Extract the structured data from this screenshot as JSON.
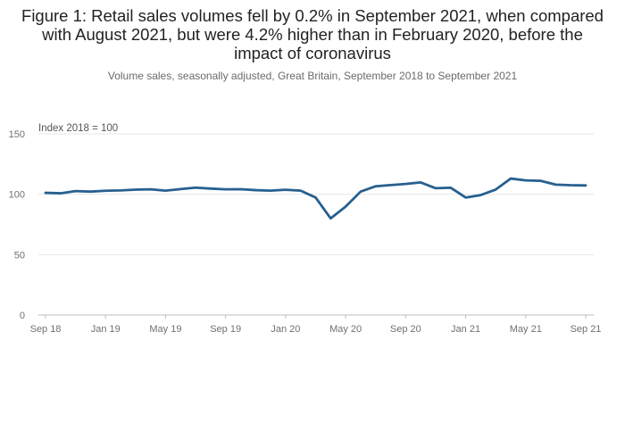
{
  "chart_data": {
    "type": "line",
    "title": "Figure 1: Retail sales volumes fell by 0.2% in September 2021, when compared with August 2021, but were 4.2% higher than in February 2020, before the impact of coronavirus",
    "subtitle": "Volume sales, seasonally adjusted, Great Britain, September 2018 to September 2021",
    "ylabel": "Index 2018 = 100",
    "xlabel": "",
    "ylim": [
      0,
      150
    ],
    "yticks": [
      0,
      50,
      100,
      150
    ],
    "xtick_labels": [
      "Sep 18",
      "Jan 19",
      "May 19",
      "Sep 19",
      "Jan 20",
      "May 20",
      "Sep 20",
      "Jan 21",
      "May 21",
      "Sep 21"
    ],
    "grid": true,
    "series": [
      {
        "name": "Volume sales",
        "color": "#27608f",
        "x": [
          "Sep 18",
          "Oct 18",
          "Nov 18",
          "Dec 18",
          "Jan 19",
          "Feb 19",
          "Mar 19",
          "Apr 19",
          "May 19",
          "Jun 19",
          "Jul 19",
          "Aug 19",
          "Sep 19",
          "Oct 19",
          "Nov 19",
          "Dec 19",
          "Jan 20",
          "Feb 20",
          "Mar 20",
          "Apr 20",
          "May 20",
          "Jun 20",
          "Jul 20",
          "Aug 20",
          "Sep 20",
          "Oct 20",
          "Nov 20",
          "Dec 20",
          "Jan 21",
          "Feb 21",
          "Mar 21",
          "Apr 21",
          "May 21",
          "Jun 21",
          "Jul 21",
          "Aug 21",
          "Sep 21"
        ],
        "values": [
          101.2,
          100.8,
          102.6,
          102.2,
          102.9,
          103.2,
          103.8,
          104.1,
          103.0,
          104.3,
          105.5,
          104.7,
          104.1,
          104.2,
          103.4,
          103.0,
          103.7,
          103.0,
          97.3,
          80.0,
          89.8,
          102.2,
          106.6,
          107.6,
          108.5,
          109.8,
          105.0,
          105.4,
          97.3,
          99.3,
          103.9,
          113.0,
          111.5,
          111.1,
          108.0,
          107.5,
          107.3
        ]
      }
    ]
  }
}
